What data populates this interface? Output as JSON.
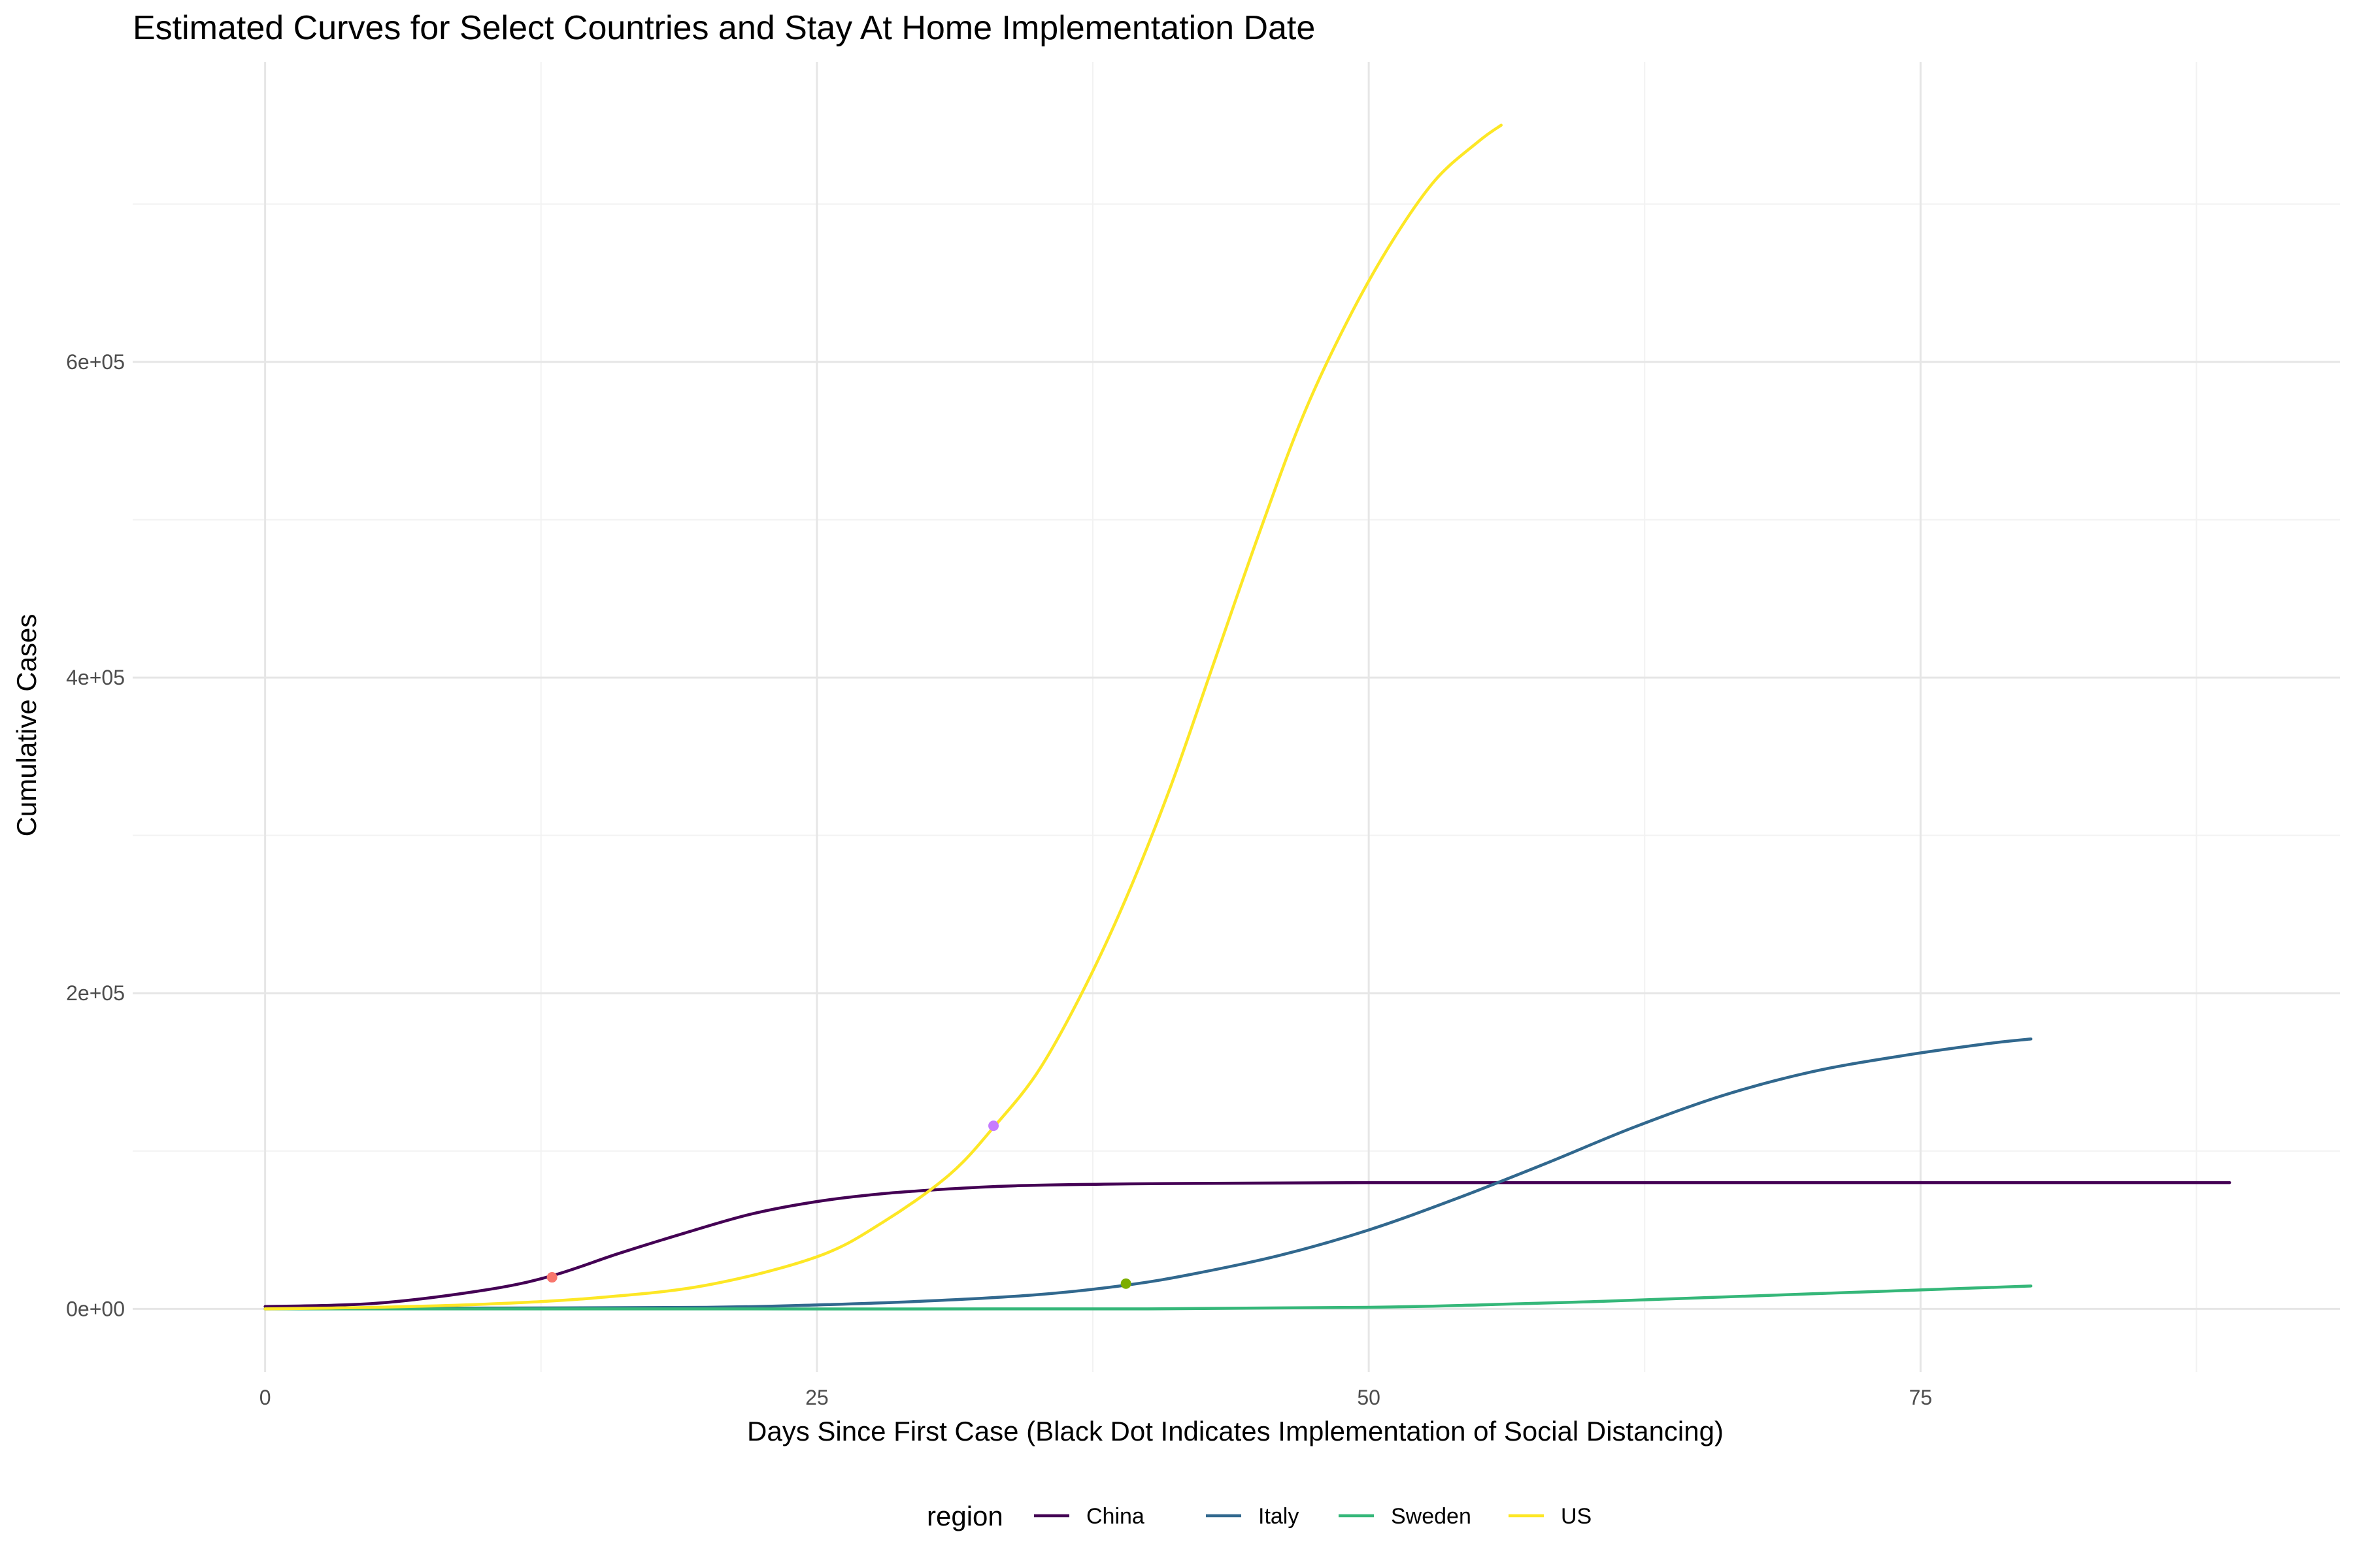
{
  "chart_data": {
    "type": "line",
    "title": "Estimated Curves for Select Countries and Stay At Home Implementation Date",
    "xlabel": "Days Since First Case (Black Dot Indicates Implementation of Social Distancing)",
    "ylabel": "Cumulative Cases",
    "xlim": [
      -6,
      94
    ],
    "ylim": [
      -40000,
      790000
    ],
    "x_ticks": [
      {
        "value": 0,
        "label": "0"
      },
      {
        "value": 25,
        "label": "25"
      },
      {
        "value": 50,
        "label": "50"
      },
      {
        "value": 75,
        "label": "75"
      }
    ],
    "y_ticks": [
      {
        "value": 0,
        "label": "0e+00"
      },
      {
        "value": 200000,
        "label": "2e+05"
      },
      {
        "value": 400000,
        "label": "4e+05"
      },
      {
        "value": 600000,
        "label": "6e+05"
      }
    ],
    "x_minor": [
      12.5,
      37.5,
      62.5,
      87.5
    ],
    "y_minor": [
      100000,
      300000,
      500000,
      700000
    ],
    "grid": true,
    "legend": {
      "title": "region",
      "position": "bottom"
    },
    "series": [
      {
        "name": "China",
        "color": "#440154",
        "x": [
          0,
          5,
          10,
          13,
          16,
          19,
          22,
          25,
          28,
          31,
          34,
          38,
          42,
          50,
          60,
          70,
          80,
          89
        ],
        "values": [
          1500,
          3500,
          12000,
          21000,
          35000,
          48000,
          60000,
          68000,
          73000,
          76000,
          78000,
          79000,
          79500,
          80000,
          80000,
          80000,
          80000,
          80000
        ]
      },
      {
        "name": "Italy",
        "color": "#31688E",
        "x": [
          0,
          10,
          20,
          25,
          30,
          35,
          39,
          42,
          46,
          50,
          54,
          58,
          62,
          66,
          70,
          74,
          78,
          80
        ],
        "values": [
          0,
          500,
          1000,
          2500,
          5000,
          9000,
          15000,
          22000,
          34000,
          50000,
          70000,
          92000,
          115000,
          135000,
          150000,
          160000,
          168000,
          171000
        ]
      },
      {
        "name": "Sweden",
        "color": "#35B779",
        "x": [
          0,
          20,
          40,
          50,
          55,
          60,
          65,
          70,
          75,
          80
        ],
        "values": [
          0,
          0,
          0,
          1000,
          2500,
          4500,
          7000,
          9500,
          12000,
          14500
        ]
      },
      {
        "name": "US",
        "color": "#FDE725",
        "x": [
          0,
          5,
          10,
          15,
          20,
          25,
          28,
          31,
          33,
          35,
          37,
          39,
          41,
          43,
          45,
          47,
          49,
          51,
          53,
          55,
          56
        ],
        "values": [
          0,
          1000,
          3000,
          7000,
          15000,
          33000,
          55000,
          85000,
          115000,
          150000,
          200000,
          260000,
          330000,
          410000,
          490000,
          565000,
          625000,
          675000,
          715000,
          740000,
          750000
        ]
      }
    ],
    "markers": [
      {
        "x": 13,
        "y": 20000,
        "color": "#F8766D"
      },
      {
        "x": 33,
        "y": 116000,
        "color": "#C77CFF"
      },
      {
        "x": 39,
        "y": 16000,
        "color": "#7CAE00"
      }
    ]
  }
}
